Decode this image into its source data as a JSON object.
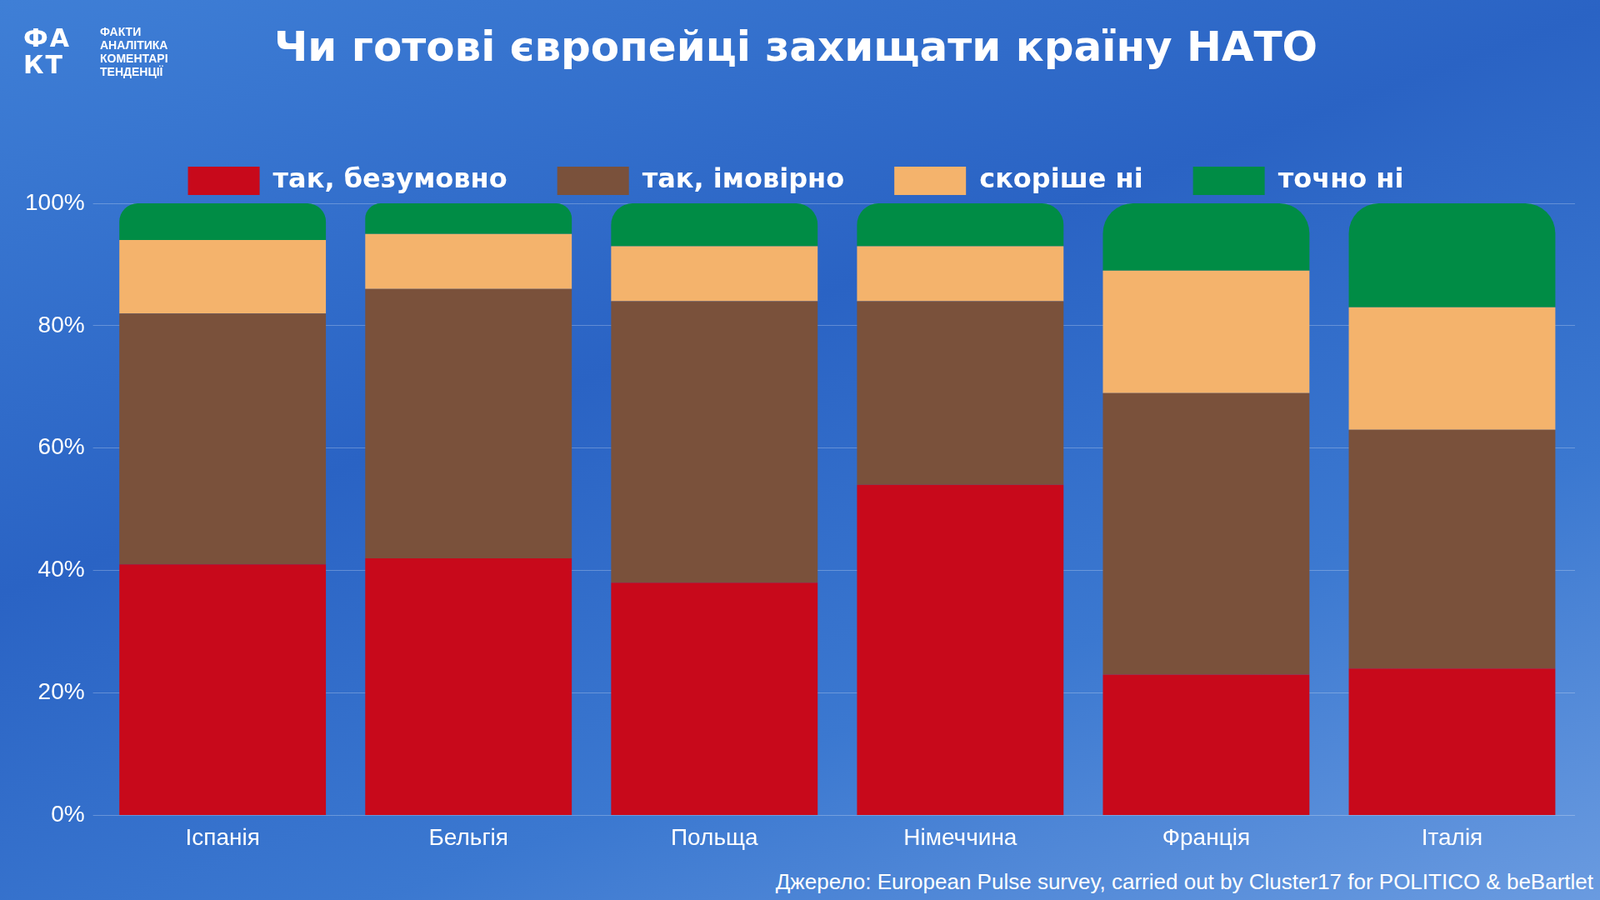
{
  "header": {
    "logo": "ФАКТ",
    "logo_lines": [
      "ФАКТИ",
      "АНАЛІТИКА",
      "КОМЕНТАРІ",
      "ТЕНДЕНЦІЇ"
    ]
  },
  "source": "Джерело: European Pulse survey, carried out by Cluster17 for POLITICO & beBartlet",
  "chart_data": {
    "type": "bar",
    "title": "Чи готові європейці захищати країну НАТО",
    "categories": [
      "Іспанія",
      "Бельгія",
      "Польща",
      "Німеччина",
      "Франція",
      "Італія"
    ],
    "series": [
      {
        "name": "так, безумовно",
        "color": "#c8091b",
        "values": [
          41,
          42,
          38,
          54,
          23,
          24
        ]
      },
      {
        "name": "так, імовірно",
        "color": "#7a513b",
        "values": [
          41,
          44,
          46,
          30,
          46,
          39
        ]
      },
      {
        "name": "скоріше ні",
        "color": "#f4b36c",
        "values": [
          12,
          9,
          9,
          9,
          20,
          20
        ]
      },
      {
        "name": "точно ні",
        "color": "#008c45",
        "values": [
          6,
          5,
          7,
          7,
          11,
          17
        ]
      }
    ],
    "stacked": true,
    "ylim": [
      0,
      100
    ],
    "yticks": [
      {
        "value": 0,
        "label": "0%"
      },
      {
        "value": 20,
        "label": "20%"
      },
      {
        "value": 40,
        "label": "40%"
      },
      {
        "value": 60,
        "label": "60%"
      },
      {
        "value": 80,
        "label": "80%"
      },
      {
        "value": 100,
        "label": "100%"
      }
    ],
    "grid": true,
    "legend": "top"
  }
}
